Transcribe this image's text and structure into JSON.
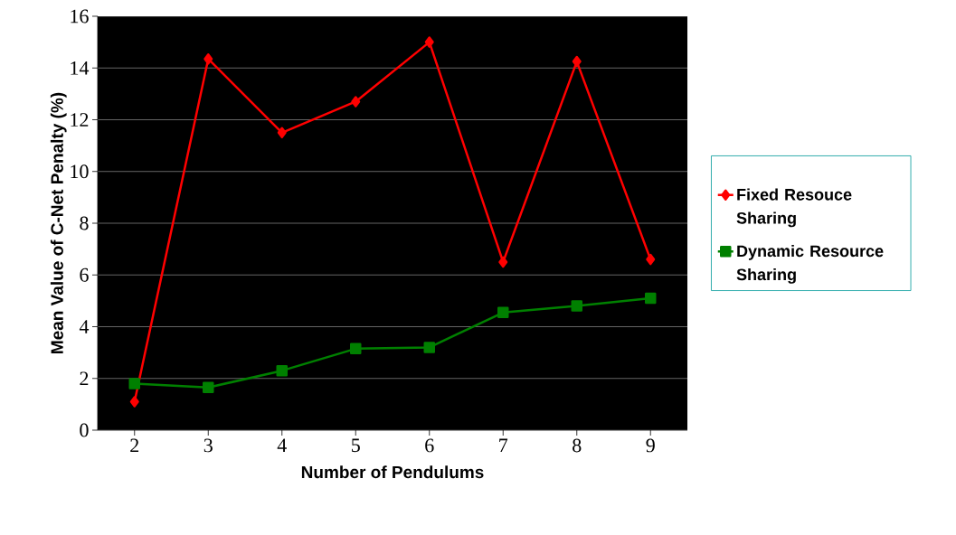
{
  "chart_data": {
    "type": "line",
    "xlabel": "Number of Pendulums",
    "ylabel": "Mean Value of C-Net Penalty (%)",
    "categories": [
      "2",
      "3",
      "4",
      "5",
      "6",
      "7",
      "8",
      "9"
    ],
    "series": [
      {
        "name": "Fixed Resouce Sharing",
        "color": "#ff0000",
        "marker": "diamond",
        "values": [
          1.1,
          14.35,
          11.5,
          12.7,
          15.0,
          6.5,
          14.25,
          6.6
        ]
      },
      {
        "name": "Dynamic Resource Sharing",
        "color": "#008000",
        "marker": "square",
        "values": [
          1.8,
          1.65,
          2.3,
          3.15,
          3.2,
          4.55,
          4.8,
          5.1
        ]
      }
    ],
    "ylim": [
      0,
      16
    ],
    "yticks": [
      0,
      2,
      4,
      6,
      8,
      10,
      12,
      14,
      16
    ],
    "grid": "y",
    "legend": "right"
  }
}
